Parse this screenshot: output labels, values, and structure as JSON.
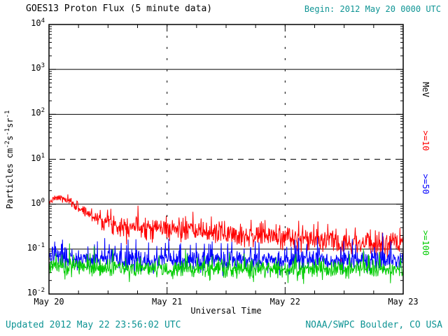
{
  "title": "GOES13 Proton Flux (5 minute data)",
  "begin_label": "Begin: 2012 May 20 0000 UTC",
  "footer": {
    "updated": "Updated 2012 May 22 23:56:02 UTC",
    "source": "NOAA/SWPC Boulder, CO USA"
  },
  "colors": {
    "text_teal": "#0e9494",
    "axis_black": "#000000",
    "red": "#ff0000",
    "blue": "#0000ff",
    "green": "#00cc00",
    "background": "#ffffff"
  },
  "axes": {
    "xlabel": "Universal Time",
    "x_tick_labels": [
      "May 20",
      "May 21",
      "May 22",
      "May 23"
    ],
    "y_tick_base": "10",
    "y_tick_exponents": [
      4,
      3,
      2,
      1,
      0,
      -1,
      -2
    ],
    "ylabel_parts": [
      "Particles cm",
      "-2",
      "s",
      "-1",
      "sr",
      "-1"
    ]
  },
  "right_labels": {
    "unit": "MeV",
    "thresholds": [
      {
        "label": ">=10",
        "color": "#ff0000"
      },
      {
        "label": ">=50",
        "color": "#0000ff"
      },
      {
        "label": ">=100",
        "color": "#00cc00"
      }
    ]
  },
  "chart_data": {
    "type": "line",
    "title": "GOES13 Proton Flux (5 minute data)",
    "xlabel": "Universal Time",
    "ylabel": "Particles cm^-2 s^-1 sr^-1",
    "x_unit": "hours since 2012 May 20 0000 UTC",
    "x_range": [
      0,
      72
    ],
    "x_tick_hours": [
      0,
      24,
      48,
      72
    ],
    "y_scale": "log10",
    "y_range_exponents": [
      -2,
      4
    ],
    "grid": {
      "solid_hline_exponents": [
        3,
        2,
        0,
        -1
      ],
      "dashed_hline_exponents": [
        1
      ],
      "dashed_vline_hours": [
        24,
        48
      ]
    },
    "sample_minutes": 5,
    "seed": 7,
    "series": [
      {
        "name": ">=10 MeV",
        "color": "#ff0000",
        "trend": [
          [
            0,
            1.1
          ],
          [
            1,
            1.3
          ],
          [
            2,
            1.4
          ],
          [
            3,
            1.3
          ],
          [
            4,
            1.15
          ],
          [
            5,
            1.0
          ],
          [
            6,
            0.85
          ],
          [
            7,
            0.72
          ],
          [
            8,
            0.62
          ],
          [
            9,
            0.55
          ],
          [
            10,
            0.5
          ],
          [
            11,
            0.45
          ],
          [
            12,
            0.42
          ],
          [
            13,
            0.38
          ],
          [
            14,
            0.35
          ],
          [
            15,
            0.33
          ],
          [
            16,
            0.35
          ],
          [
            18,
            0.33
          ],
          [
            20,
            0.32
          ],
          [
            22,
            0.3
          ],
          [
            24,
            0.29
          ],
          [
            27,
            0.27
          ],
          [
            30,
            0.25
          ],
          [
            33,
            0.24
          ],
          [
            36,
            0.23
          ],
          [
            40,
            0.21
          ],
          [
            44,
            0.2
          ],
          [
            48,
            0.19
          ],
          [
            52,
            0.17
          ],
          [
            56,
            0.16
          ],
          [
            60,
            0.15
          ],
          [
            64,
            0.14
          ],
          [
            68,
            0.13
          ],
          [
            72,
            0.125
          ]
        ],
        "noise_sigma_log10": [
          [
            0,
            0.03
          ],
          [
            4,
            0.05
          ],
          [
            8,
            0.08
          ],
          [
            12,
            0.12
          ],
          [
            16,
            0.14
          ],
          [
            24,
            0.13
          ],
          [
            48,
            0.14
          ],
          [
            72,
            0.14
          ]
        ],
        "spike_probability": 0,
        "spike_gain": 1
      },
      {
        "name": ">=50 MeV",
        "color": "#0000ff",
        "trend": [
          [
            0,
            0.075
          ],
          [
            3,
            0.068
          ],
          [
            6,
            0.062
          ],
          [
            10,
            0.058
          ],
          [
            16,
            0.056
          ],
          [
            24,
            0.056
          ],
          [
            48,
            0.056
          ],
          [
            72,
            0.057
          ]
        ],
        "noise_sigma_log10": [
          [
            0,
            0.11
          ],
          [
            72,
            0.11
          ]
        ],
        "spike_probability": 0.1,
        "spike_gain": 2.8
      },
      {
        "name": ">=100 MeV",
        "color": "#00cc00",
        "trend": [
          [
            0,
            0.045
          ],
          [
            4,
            0.042
          ],
          [
            8,
            0.039
          ],
          [
            12,
            0.037
          ],
          [
            24,
            0.036
          ],
          [
            48,
            0.035
          ],
          [
            72,
            0.035
          ]
        ],
        "noise_sigma_log10": [
          [
            0,
            0.1
          ],
          [
            72,
            0.1
          ]
        ],
        "spike_probability": 0.07,
        "spike_gain": 1.9
      }
    ]
  }
}
